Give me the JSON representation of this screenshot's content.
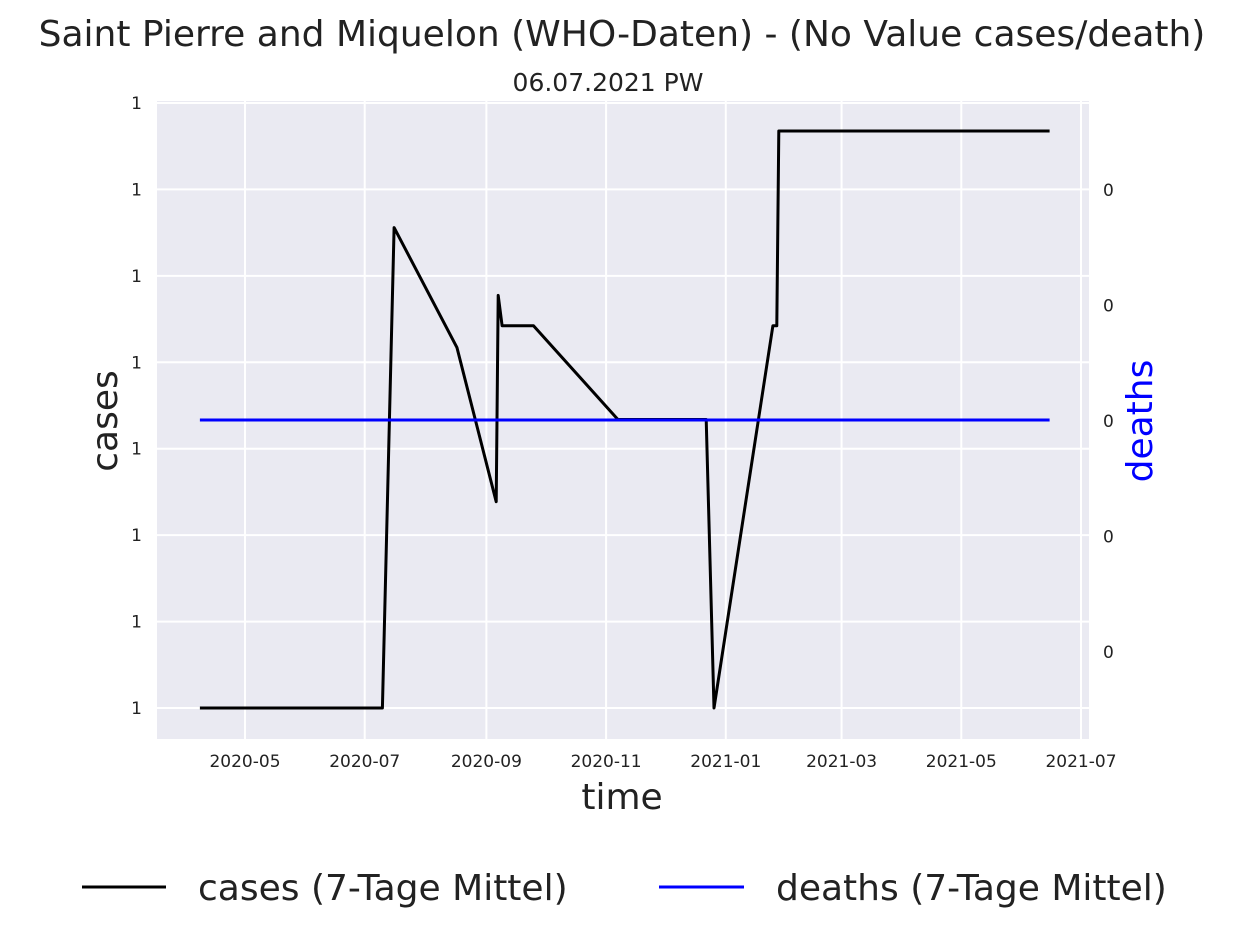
{
  "chart_data": {
    "type": "line",
    "title": "Saint Pierre and Miquelon (WHO-Daten) - (No Value cases/death)",
    "subtitle": "06.07.2021 PW",
    "xlabel": "time",
    "ylabel_left": "cases",
    "ylabel_right": "deaths",
    "x_ticks": [
      "2020-05",
      "2020-07",
      "2020-09",
      "2020-11",
      "2021-01",
      "2021-03",
      "2021-05",
      "2021-07"
    ],
    "y_left_ticks": [
      "1",
      "1",
      "1",
      "1",
      "1",
      "1",
      "1",
      "1"
    ],
    "y_right_ticks": [
      "0",
      "0",
      "0",
      "0",
      "0"
    ],
    "grid": true,
    "legend_position": "bottom",
    "colors": {
      "cases": "#000000",
      "deaths": "#0000ff",
      "background": "#eaeaf2",
      "grid": "#ffffff"
    },
    "series": [
      {
        "name": "cases (7-Tage Mittel)",
        "axis": "left",
        "color": "#000000",
        "points": [
          [
            "2020-04-08",
            0.0
          ],
          [
            "2020-07-10",
            0.0
          ],
          [
            "2020-07-16",
            0.333
          ],
          [
            "2020-08-17",
            0.25
          ],
          [
            "2020-09-06",
            0.143
          ],
          [
            "2020-09-07",
            0.286
          ],
          [
            "2020-09-09",
            0.265
          ],
          [
            "2020-09-25",
            0.265
          ],
          [
            "2020-11-07",
            0.2
          ],
          [
            "2020-12-22",
            0.2
          ],
          [
            "2020-12-26",
            0.0
          ],
          [
            "2021-01-25",
            0.265
          ],
          [
            "2021-01-27",
            0.265
          ],
          [
            "2021-01-28",
            0.4
          ],
          [
            "2021-06-15",
            0.4
          ]
        ]
      },
      {
        "name": "deaths (7-Tage Mittel)",
        "axis": "right",
        "color": "#0000ff",
        "points": [
          [
            "2020-04-08",
            0.0
          ],
          [
            "2021-06-15",
            0.0
          ]
        ]
      }
    ]
  }
}
